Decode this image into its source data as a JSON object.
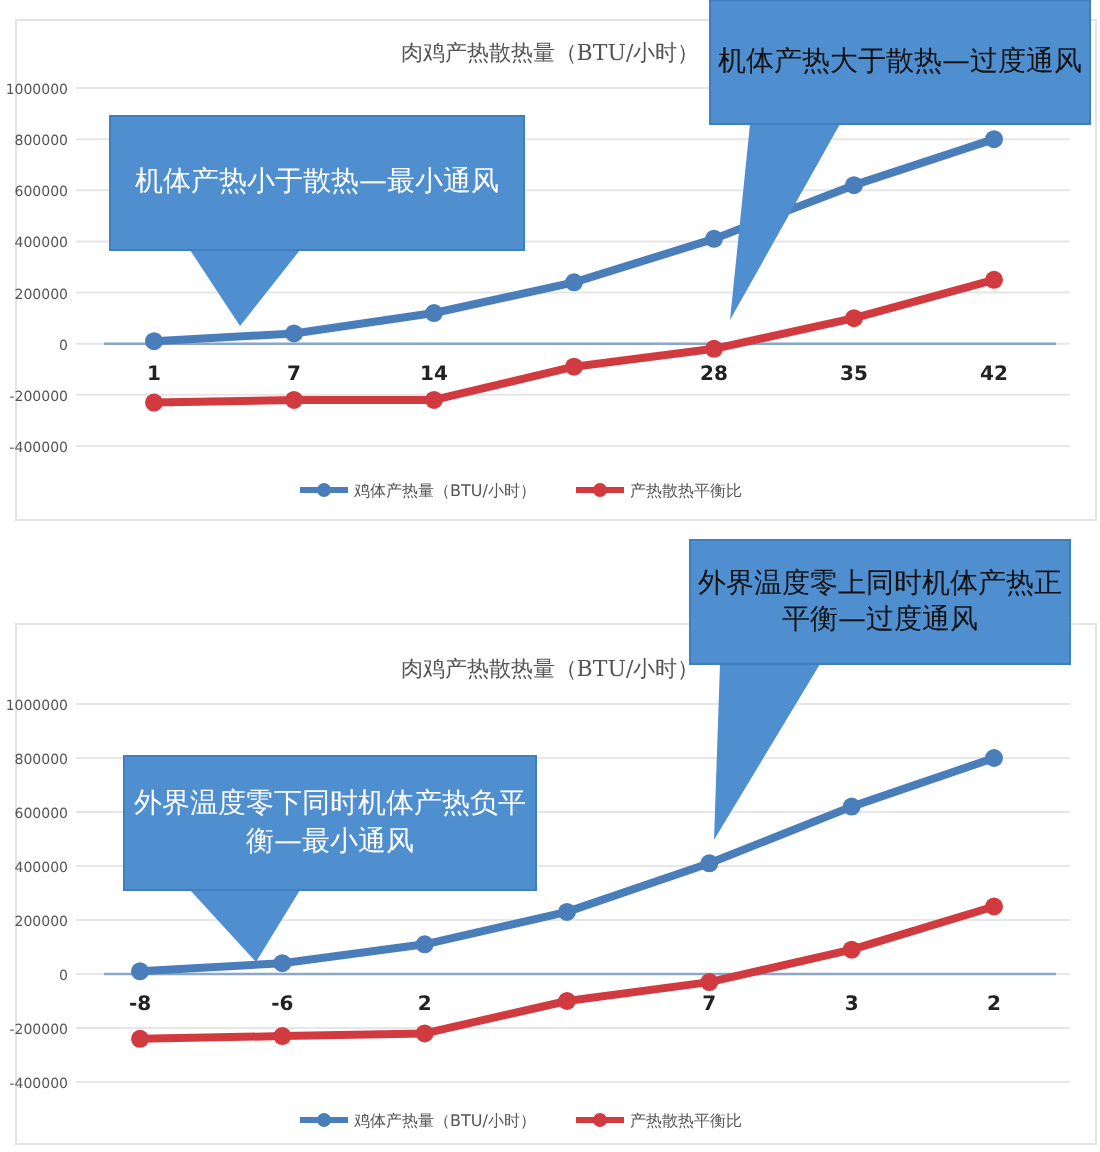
{
  "chart_data": [
    {
      "type": "line",
      "title": "肉鸡产热散热量（BTU/小时）",
      "categories": [
        "1",
        "7",
        "14",
        null,
        "28",
        "35",
        "42"
      ],
      "series": [
        {
          "name": "鸡体产热量（BTU/小时）",
          "color": "#4a7ebb",
          "values": [
            10000,
            40000,
            120000,
            240000,
            410000,
            620000,
            800000
          ]
        },
        {
          "name": "产热散热平衡比",
          "color": "#d13b40",
          "values": [
            -230000,
            -220000,
            -220000,
            -90000,
            -20000,
            100000,
            250000
          ]
        }
      ],
      "ylim": [
        -400000,
        1000000
      ],
      "yticks": [
        -400000,
        -200000,
        0,
        200000,
        400000,
        600000,
        800000,
        1000000
      ],
      "grid": "y",
      "legend": "bottom",
      "marker": "circle",
      "line_style": "solid",
      "annotations": [
        "机体产热小于散热—最小通风",
        "机体产热大于散热—过度通风"
      ]
    },
    {
      "type": "line",
      "title": "肉鸡产热散热量（BTU/小时）",
      "categories": [
        "-8",
        "-6",
        "2",
        null,
        "7",
        "3",
        "2"
      ],
      "series": [
        {
          "name": "鸡体产热量（BTU/小时）",
          "color": "#4a7ebb",
          "values": [
            10000,
            40000,
            110000,
            230000,
            410000,
            620000,
            800000
          ]
        },
        {
          "name": "产热散热平衡比",
          "color": "#d13b40",
          "values": [
            -240000,
            -230000,
            -220000,
            -100000,
            -30000,
            90000,
            250000
          ]
        }
      ],
      "ylim": [
        -400000,
        1000000
      ],
      "yticks": [
        -400000,
        -200000,
        0,
        200000,
        400000,
        600000,
        800000,
        1000000
      ],
      "grid": "y",
      "legend": "bottom",
      "marker": "circle",
      "line_style": "solid",
      "annotations": [
        "外界温度零下同时机体产热负平衡—最小通风",
        "外界温度零上同时机体产热正平衡—过度通风"
      ]
    }
  ]
}
